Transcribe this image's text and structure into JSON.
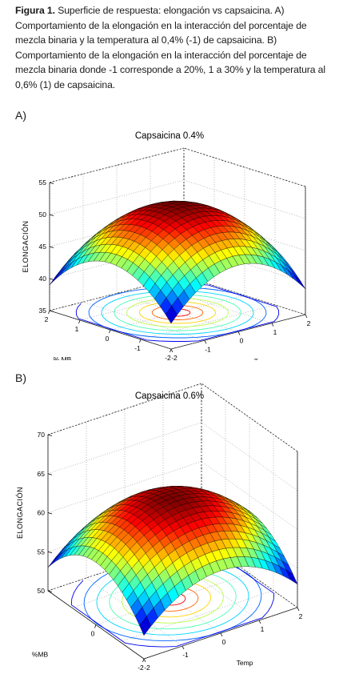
{
  "caption": {
    "label": "Figura 1.",
    "text": "Superficie de respuesta: elongación vs capsaicina. A) Comportamiento de la elongación en la interacción del porcentaje de mezcla binaria y la temperatura al 0,4% (-1) de capsaicina. B) Comportamiento de la elongación en la interacción del porcentaje de mezcla binaria donde -1 corresponde a 20%, 1 a 30% y la temperatura al 0,6% (1) de capsaicina."
  },
  "panels": {
    "a_label": "A)",
    "b_label": "B)"
  },
  "chart_data": [
    {
      "type": "surface",
      "title": "Capsaicina 0.4%",
      "xlabel": "% MB",
      "ylabel": "Temp",
      "zlabel": "ELONGACIÓN",
      "x_ticks": [
        "2",
        "1",
        "0",
        "-1",
        "-2"
      ],
      "y_ticks": [
        "-2",
        "-1",
        "0",
        "1",
        "2"
      ],
      "z_ticks": [
        "35",
        "40",
        "45",
        "50",
        "55"
      ],
      "xlim": [
        -2,
        2
      ],
      "ylim": [
        -2,
        2
      ],
      "zlim": [
        35,
        55
      ],
      "surface": {
        "peak_value": 51.8,
        "peak_x": 0,
        "peak_y": 0,
        "min_corner_value": 39
      },
      "colormap": "jet",
      "contours_on_floor": true,
      "grid": true
    },
    {
      "type": "surface",
      "title": "Capsaicina 0.6%",
      "xlabel": "%MB",
      "ylabel": "Temp",
      "zlabel": "ELONGACIÓN",
      "x_ticks": [
        "0",
        "-2"
      ],
      "y_ticks": [
        "-2",
        "-1",
        "0",
        "1",
        "2"
      ],
      "z_ticks": [
        "50",
        "55",
        "60",
        "65",
        "70"
      ],
      "xlim": [
        -2,
        2
      ],
      "ylim": [
        -2,
        2
      ],
      "zlim": [
        50,
        70
      ],
      "surface": {
        "peak_value": 63,
        "peak_x": 0,
        "peak_y": 0,
        "min_corner_value": 53
      },
      "colormap": "jet",
      "contours_on_floor": true,
      "grid": true
    }
  ]
}
